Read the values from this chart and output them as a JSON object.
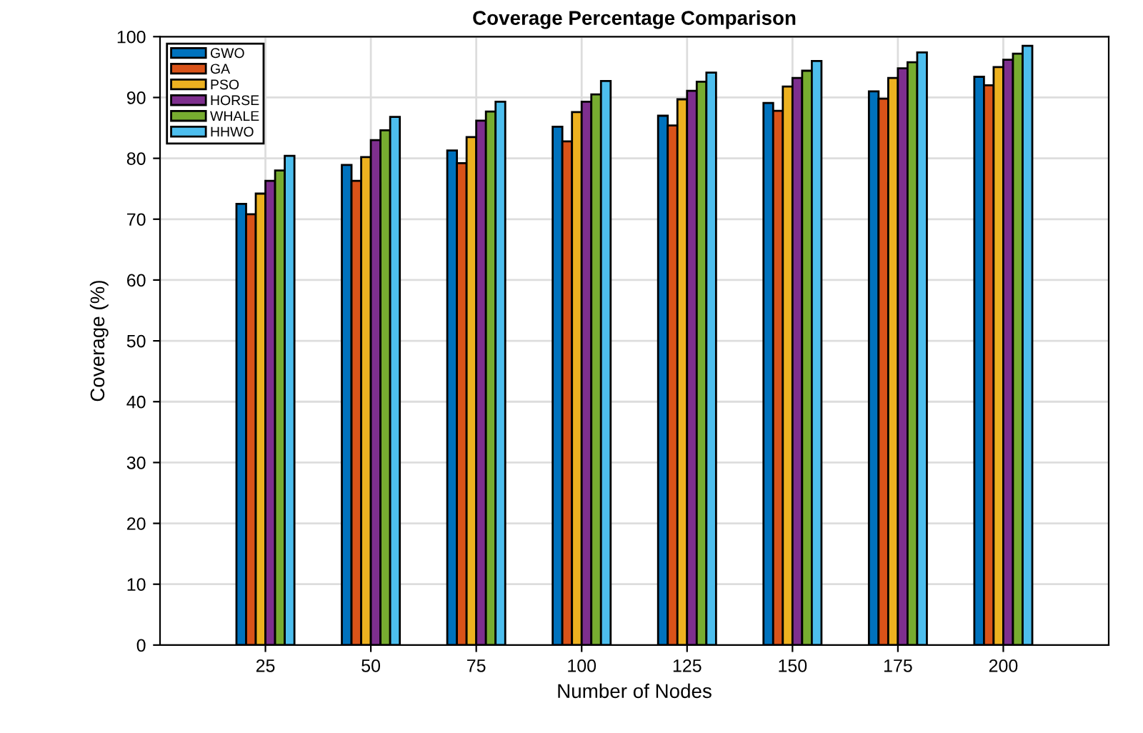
{
  "chart_data": {
    "type": "bar",
    "title": "Coverage Percentage Comparison",
    "xlabel": "Number of Nodes",
    "ylabel": "Coverage (%)",
    "x": [
      25,
      50,
      75,
      100,
      125,
      150,
      175,
      200
    ],
    "series": [
      {
        "name": "GWO",
        "color": "#0072bd",
        "values": [
          72.5,
          78.9,
          81.3,
          85.2,
          87.0,
          89.1,
          91.0,
          93.4
        ]
      },
      {
        "name": "GA",
        "color": "#d95319",
        "values": [
          70.8,
          76.3,
          79.2,
          82.8,
          85.4,
          87.8,
          89.8,
          92.0
        ]
      },
      {
        "name": "PSO",
        "color": "#edb120",
        "values": [
          74.2,
          80.2,
          83.5,
          87.6,
          89.7,
          91.8,
          93.2,
          95.0
        ]
      },
      {
        "name": "HORSE",
        "color": "#7e2f8e",
        "values": [
          76.3,
          83.0,
          86.2,
          89.3,
          91.1,
          93.2,
          94.8,
          96.2
        ]
      },
      {
        "name": "WHALE",
        "color": "#77ac30",
        "values": [
          78.0,
          84.6,
          87.7,
          90.5,
          92.6,
          94.4,
          95.8,
          97.2
        ]
      },
      {
        "name": "HHWO",
        "color": "#4dbeee",
        "values": [
          80.4,
          86.8,
          89.3,
          92.7,
          94.1,
          96.0,
          97.4,
          98.5
        ]
      }
    ],
    "xlim": [
      0,
      225
    ],
    "xticks": [
      25,
      50,
      75,
      100,
      125,
      150,
      175,
      200
    ],
    "ylim": [
      0,
      100
    ],
    "yticks": [
      0,
      10,
      20,
      30,
      40,
      50,
      60,
      70,
      80,
      90,
      100
    ],
    "grid": true,
    "legend": "top left"
  }
}
